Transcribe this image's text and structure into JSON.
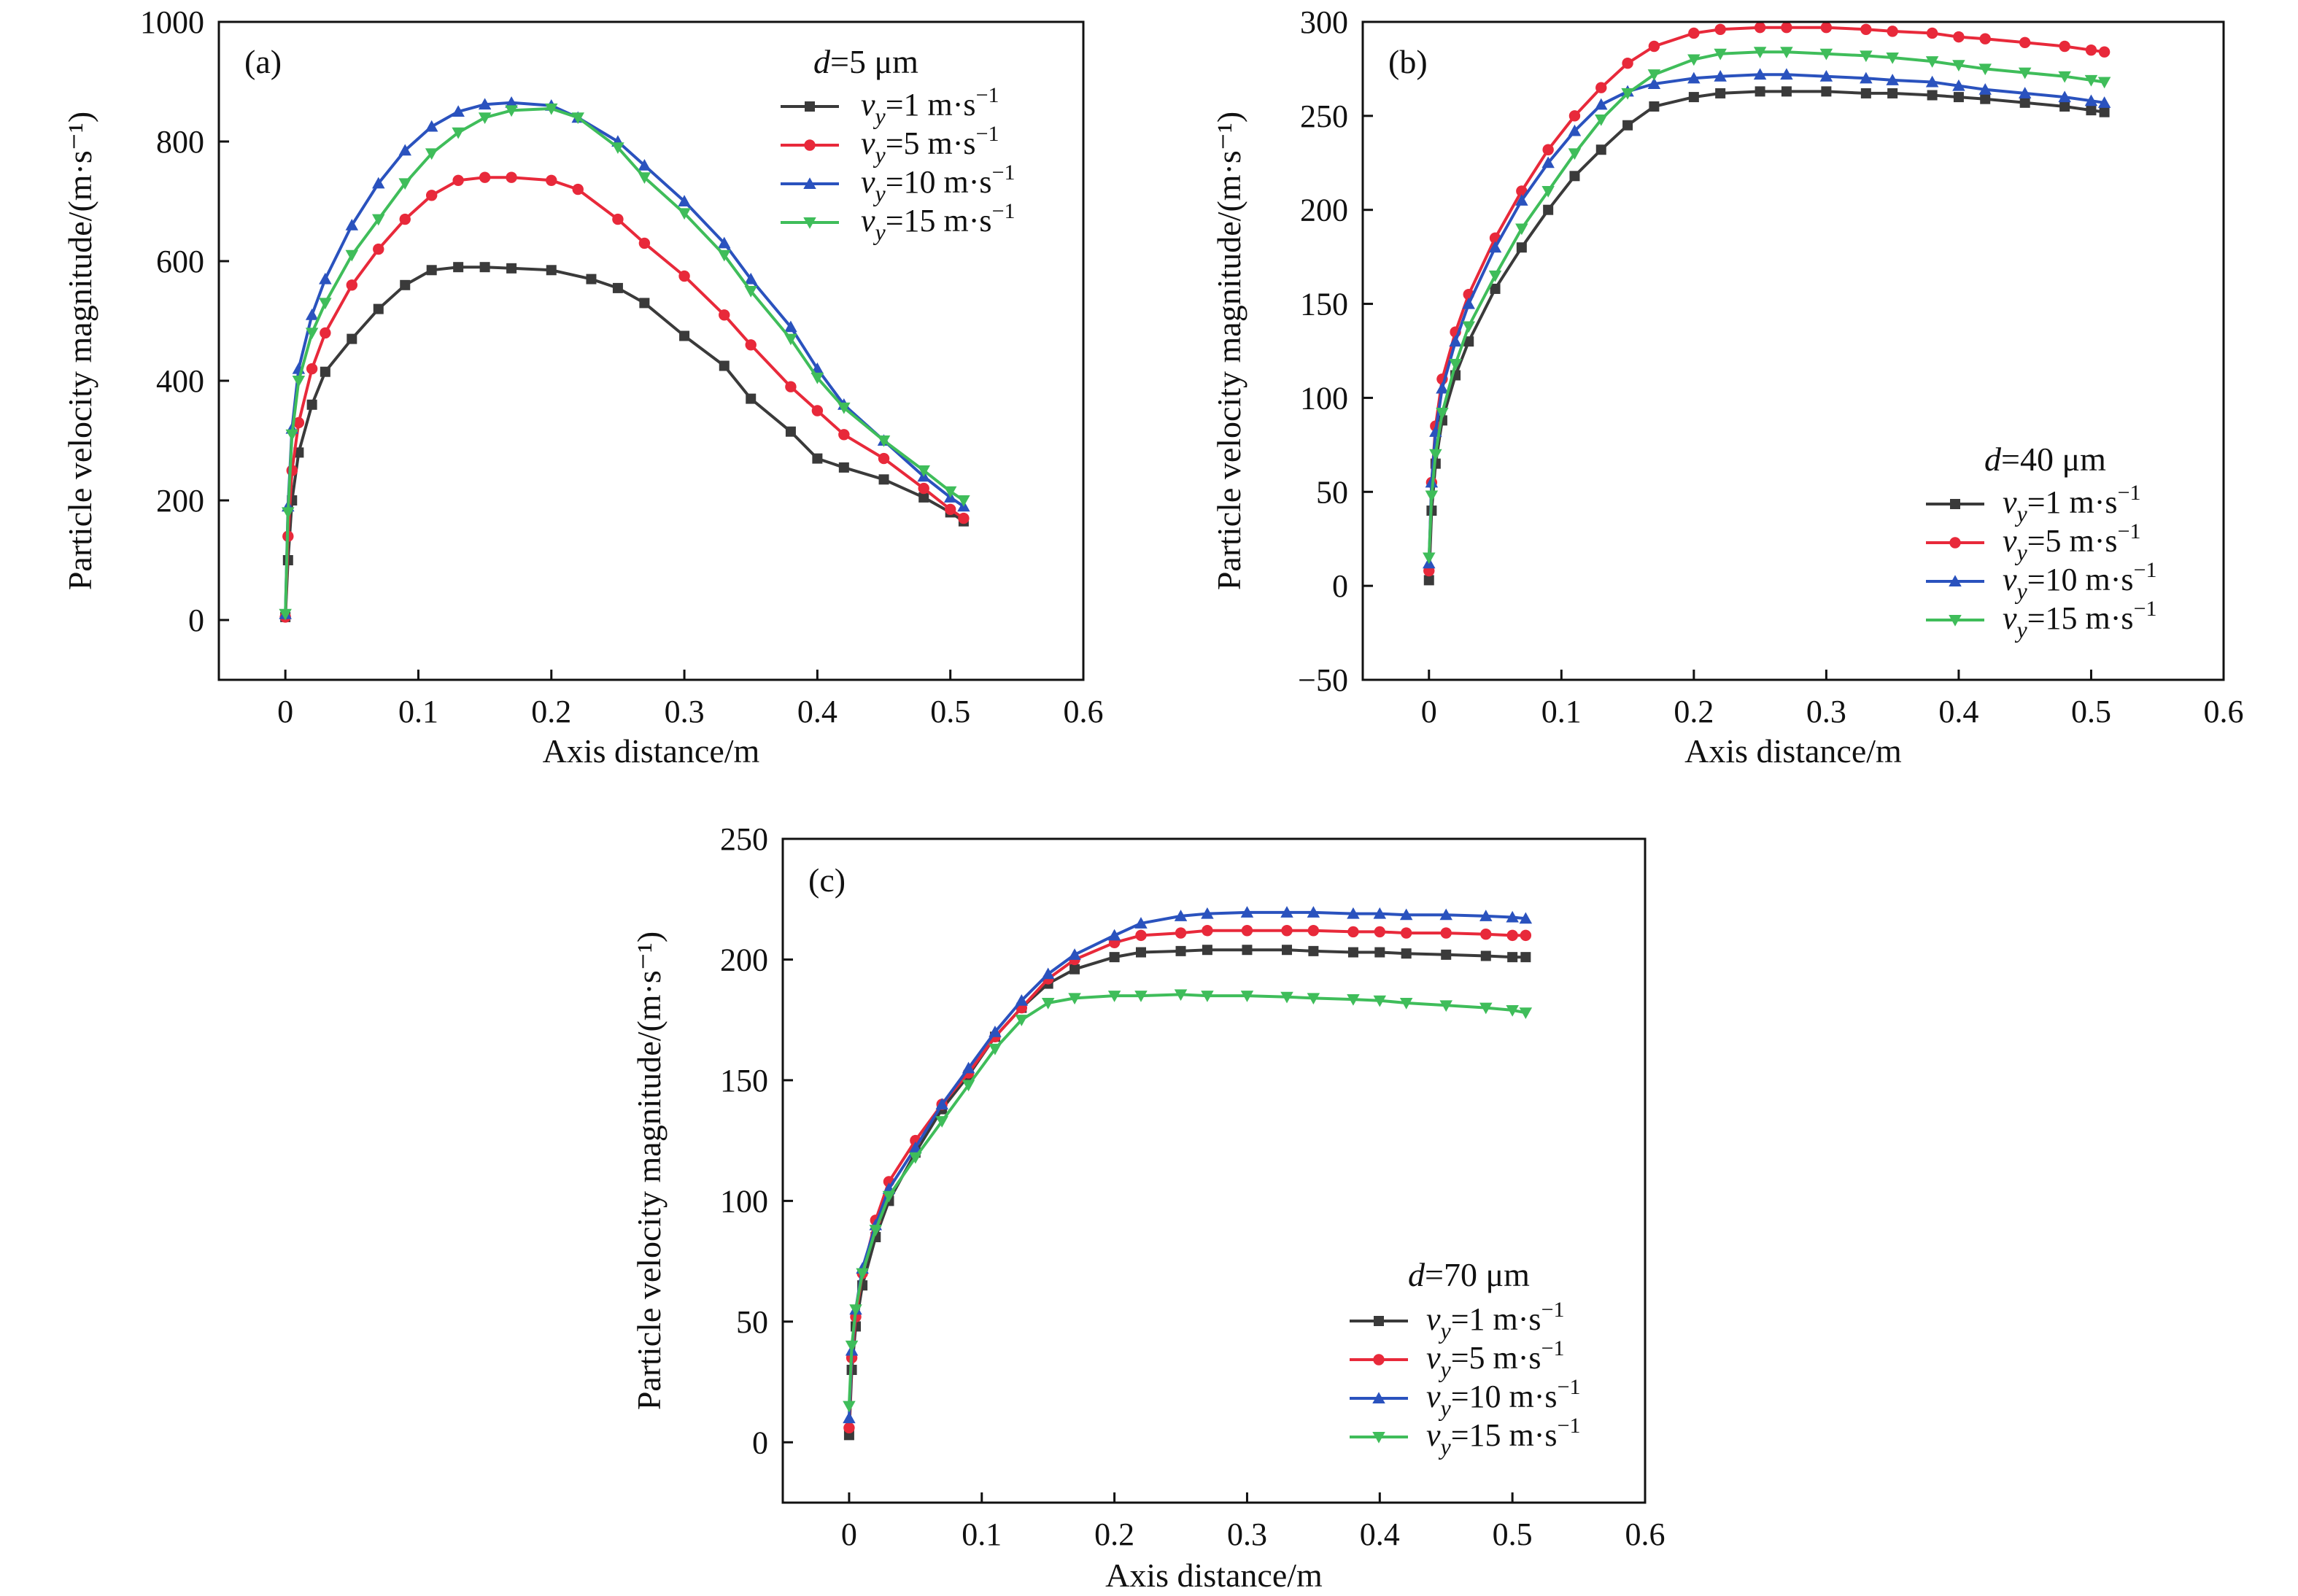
{
  "chart_data": [
    {
      "type": "line",
      "panel": "(a)",
      "xlabel": "Axis distance/m",
      "ylabel": "Particle velocity magnitude/(m·s⁻¹)",
      "xlim": [
        -0.05,
        0.6
      ],
      "ylim": [
        -100,
        1000
      ],
      "xticks": [
        "0",
        "0.1",
        "0.2",
        "0.3",
        "0.4",
        "0.5",
        "0.6"
      ],
      "yticks": [
        "0",
        "200",
        "400",
        "600",
        "800",
        "1000"
      ],
      "grid": false,
      "legend": {
        "title_var": "d",
        "title_rest": "=5 μm",
        "position": "top-right",
        "entries": [
          {
            "var": "v",
            "sub": "y",
            "rest": "=1 m·s",
            "sup": "−1"
          },
          {
            "var": "v",
            "sub": "y",
            "rest": "=5 m·s",
            "sup": "−1"
          },
          {
            "var": "v",
            "sub": "y",
            "rest": "=10 m·s",
            "sup": "−1"
          },
          {
            "var": "v",
            "sub": "y",
            "rest": "=15 m·s",
            "sup": "−1"
          }
        ]
      },
      "series": [
        {
          "name": "vy=1 m·s−1",
          "color": "#3a3a3a",
          "marker": "square",
          "x": [
            0,
            0.002,
            0.005,
            0.01,
            0.02,
            0.03,
            0.05,
            0.07,
            0.09,
            0.11,
            0.13,
            0.15,
            0.17,
            0.2,
            0.23,
            0.25,
            0.27,
            0.3,
            0.33,
            0.35,
            0.38,
            0.4,
            0.42,
            0.45,
            0.48,
            0.5,
            0.51
          ],
          "y": [
            5,
            100,
            200,
            280,
            360,
            415,
            470,
            520,
            560,
            585,
            590,
            590,
            588,
            585,
            570,
            555,
            530,
            475,
            425,
            370,
            315,
            270,
            255,
            235,
            205,
            180,
            165
          ]
        },
        {
          "name": "vy=5 m·s−1",
          "color": "#e8293a",
          "marker": "circle",
          "x": [
            0,
            0.002,
            0.005,
            0.01,
            0.02,
            0.03,
            0.05,
            0.07,
            0.09,
            0.11,
            0.13,
            0.15,
            0.17,
            0.2,
            0.22,
            0.25,
            0.27,
            0.3,
            0.33,
            0.35,
            0.38,
            0.4,
            0.42,
            0.45,
            0.48,
            0.5,
            0.51
          ],
          "y": [
            5,
            140,
            250,
            330,
            420,
            480,
            560,
            620,
            670,
            710,
            735,
            740,
            740,
            735,
            720,
            670,
            630,
            575,
            510,
            460,
            390,
            350,
            310,
            270,
            220,
            185,
            170
          ]
        },
        {
          "name": "vy=10 m·s−1",
          "color": "#2a52be",
          "marker": "triangle-up",
          "x": [
            0,
            0.002,
            0.005,
            0.01,
            0.02,
            0.03,
            0.05,
            0.07,
            0.09,
            0.11,
            0.13,
            0.15,
            0.17,
            0.2,
            0.22,
            0.25,
            0.27,
            0.3,
            0.33,
            0.35,
            0.38,
            0.4,
            0.42,
            0.45,
            0.48,
            0.5,
            0.51
          ],
          "y": [
            10,
            190,
            320,
            420,
            510,
            570,
            660,
            730,
            785,
            825,
            850,
            862,
            865,
            860,
            840,
            800,
            760,
            700,
            630,
            570,
            490,
            420,
            360,
            300,
            240,
            205,
            190
          ]
        },
        {
          "name": "vy=15 m·s−1",
          "color": "#3fbd5a",
          "marker": "triangle-down",
          "x": [
            0,
            0.002,
            0.005,
            0.01,
            0.02,
            0.03,
            0.05,
            0.07,
            0.09,
            0.11,
            0.13,
            0.15,
            0.17,
            0.2,
            0.22,
            0.25,
            0.27,
            0.3,
            0.33,
            0.35,
            0.38,
            0.4,
            0.42,
            0.45,
            0.48,
            0.5,
            0.51
          ],
          "y": [
            10,
            180,
            310,
            400,
            480,
            530,
            610,
            670,
            730,
            780,
            815,
            840,
            852,
            855,
            840,
            790,
            740,
            680,
            610,
            550,
            470,
            405,
            355,
            300,
            250,
            215,
            200
          ]
        }
      ]
    },
    {
      "type": "line",
      "panel": "(b)",
      "xlabel": "Axis distance/m",
      "ylabel": "Particle velocity magnitude/(m·s⁻¹)",
      "xlim": [
        -0.05,
        0.6
      ],
      "ylim": [
        -50,
        300
      ],
      "xticks": [
        "0",
        "0.1",
        "0.2",
        "0.3",
        "0.4",
        "0.5",
        "0.6"
      ],
      "yticks": [
        "−50",
        "0",
        "50",
        "100",
        "150",
        "200",
        "250",
        "300"
      ],
      "grid": false,
      "legend": {
        "title_var": "d",
        "title_rest": "=40 μm",
        "position": "bottom-right",
        "entries": [
          {
            "var": "v",
            "sub": "y",
            "rest": "=1 m·s",
            "sup": "−1"
          },
          {
            "var": "v",
            "sub": "y",
            "rest": "=5 m·s",
            "sup": "−1"
          },
          {
            "var": "v",
            "sub": "y",
            "rest": "=10 m·s",
            "sup": "−1"
          },
          {
            "var": "v",
            "sub": "y",
            "rest": "=15 m·s",
            "sup": "−1"
          }
        ]
      },
      "series": [
        {
          "name": "vy=1 m·s−1",
          "color": "#3a3a3a",
          "marker": "square",
          "x": [
            0,
            0.002,
            0.005,
            0.01,
            0.02,
            0.03,
            0.05,
            0.07,
            0.09,
            0.11,
            0.13,
            0.15,
            0.17,
            0.2,
            0.22,
            0.25,
            0.27,
            0.3,
            0.33,
            0.35,
            0.38,
            0.4,
            0.42,
            0.45,
            0.48,
            0.5,
            0.51
          ],
          "y": [
            3,
            40,
            65,
            88,
            112,
            130,
            158,
            180,
            200,
            218,
            232,
            245,
            255,
            260,
            262,
            263,
            263,
            263,
            262,
            262,
            261,
            260,
            259,
            257,
            255,
            253,
            252
          ]
        },
        {
          "name": "vy=5 m·s−1",
          "color": "#e8293a",
          "marker": "circle",
          "x": [
            0,
            0.002,
            0.005,
            0.01,
            0.02,
            0.03,
            0.05,
            0.07,
            0.09,
            0.11,
            0.13,
            0.15,
            0.17,
            0.2,
            0.22,
            0.25,
            0.27,
            0.3,
            0.33,
            0.35,
            0.38,
            0.4,
            0.42,
            0.45,
            0.48,
            0.5,
            0.51
          ],
          "y": [
            8,
            55,
            85,
            110,
            135,
            155,
            185,
            210,
            232,
            250,
            265,
            278,
            287,
            294,
            296,
            297,
            297,
            297,
            296,
            295,
            294,
            292,
            291,
            289,
            287,
            285,
            284
          ]
        },
        {
          "name": "vy=10 m·s−1",
          "color": "#2a52be",
          "marker": "triangle-up",
          "x": [
            0,
            0.002,
            0.005,
            0.01,
            0.02,
            0.03,
            0.05,
            0.07,
            0.09,
            0.11,
            0.13,
            0.15,
            0.17,
            0.2,
            0.22,
            0.25,
            0.27,
            0.3,
            0.33,
            0.35,
            0.38,
            0.4,
            0.42,
            0.45,
            0.48,
            0.5,
            0.51
          ],
          "y": [
            12,
            55,
            82,
            105,
            130,
            150,
            180,
            205,
            225,
            242,
            256,
            263,
            267,
            270,
            271,
            272,
            272,
            271,
            270,
            269,
            268,
            266,
            264,
            262,
            260,
            258,
            257
          ]
        },
        {
          "name": "vy=15 m·s−1",
          "color": "#3fbd5a",
          "marker": "triangle-down",
          "x": [
            0,
            0.002,
            0.005,
            0.01,
            0.02,
            0.03,
            0.05,
            0.07,
            0.09,
            0.11,
            0.13,
            0.15,
            0.17,
            0.2,
            0.22,
            0.25,
            0.27,
            0.3,
            0.33,
            0.35,
            0.38,
            0.4,
            0.42,
            0.45,
            0.48,
            0.5,
            0.51
          ],
          "y": [
            15,
            48,
            70,
            92,
            118,
            138,
            165,
            190,
            210,
            230,
            248,
            262,
            272,
            280,
            283,
            284,
            284,
            283,
            282,
            281,
            279,
            277,
            275,
            273,
            271,
            269,
            268
          ]
        }
      ]
    },
    {
      "type": "line",
      "panel": "(c)",
      "xlabel": "Axis distance/m",
      "ylabel": "Particle velocity magnitude/(m·s⁻¹)",
      "xlim": [
        -0.05,
        0.6
      ],
      "ylim": [
        -25,
        250
      ],
      "xticks": [
        "0",
        "0.1",
        "0.2",
        "0.3",
        "0.4",
        "0.5",
        "0.6"
      ],
      "yticks": [
        "0",
        "50",
        "100",
        "150",
        "200",
        "250"
      ],
      "grid": false,
      "legend": {
        "title_var": "d",
        "title_rest": "=70 μm",
        "position": "bottom-right",
        "entries": [
          {
            "var": "v",
            "sub": "y",
            "rest": "=1 m·s",
            "sup": "−1"
          },
          {
            "var": "v",
            "sub": "y",
            "rest": "=5 m·s",
            "sup": "−1"
          },
          {
            "var": "v",
            "sub": "y",
            "rest": "=10 m·s",
            "sup": "−1"
          },
          {
            "var": "v",
            "sub": "y",
            "rest": "=15 m·s",
            "sup": "−1"
          }
        ]
      },
      "series": [
        {
          "name": "vy=1 m·s−1",
          "color": "#3a3a3a",
          "marker": "square",
          "x": [
            0,
            0.002,
            0.005,
            0.01,
            0.02,
            0.03,
            0.05,
            0.07,
            0.09,
            0.11,
            0.13,
            0.15,
            0.17,
            0.2,
            0.22,
            0.25,
            0.27,
            0.3,
            0.33,
            0.35,
            0.38,
            0.4,
            0.42,
            0.45,
            0.48,
            0.5,
            0.51
          ],
          "y": [
            3,
            30,
            48,
            65,
            85,
            100,
            120,
            138,
            152,
            168,
            180,
            190,
            196,
            201,
            203,
            203.5,
            204,
            204,
            204,
            203.5,
            203,
            203,
            202.5,
            202,
            201.5,
            201,
            201
          ]
        },
        {
          "name": "vy=5 m·s−1",
          "color": "#e8293a",
          "marker": "circle",
          "x": [
            0,
            0.002,
            0.005,
            0.01,
            0.02,
            0.03,
            0.05,
            0.07,
            0.09,
            0.11,
            0.13,
            0.15,
            0.17,
            0.2,
            0.22,
            0.25,
            0.27,
            0.3,
            0.33,
            0.35,
            0.38,
            0.4,
            0.42,
            0.45,
            0.48,
            0.5,
            0.51
          ],
          "y": [
            6,
            35,
            52,
            70,
            92,
            108,
            125,
            140,
            153,
            168,
            180,
            192,
            200,
            207,
            210,
            211,
            212,
            212,
            212,
            212,
            211.5,
            211.5,
            211,
            211,
            210.5,
            210,
            210
          ]
        },
        {
          "name": "vy=10 m·s−1",
          "color": "#2a52be",
          "marker": "triangle-up",
          "x": [
            0,
            0.002,
            0.005,
            0.01,
            0.02,
            0.03,
            0.05,
            0.07,
            0.09,
            0.11,
            0.13,
            0.15,
            0.17,
            0.2,
            0.22,
            0.25,
            0.27,
            0.3,
            0.33,
            0.35,
            0.38,
            0.4,
            0.42,
            0.45,
            0.48,
            0.5,
            0.51
          ],
          "y": [
            10,
            38,
            55,
            72,
            90,
            105,
            122,
            140,
            155,
            170,
            183,
            194,
            202,
            210,
            215,
            218,
            219,
            219.5,
            219.5,
            219.5,
            219,
            219,
            218.5,
            218.5,
            218,
            217.5,
            217
          ]
        },
        {
          "name": "vy=15 m·s−1",
          "color": "#3fbd5a",
          "marker": "triangle-down",
          "x": [
            0,
            0.002,
            0.005,
            0.01,
            0.02,
            0.03,
            0.05,
            0.07,
            0.09,
            0.11,
            0.13,
            0.15,
            0.17,
            0.2,
            0.22,
            0.25,
            0.27,
            0.3,
            0.33,
            0.35,
            0.38,
            0.4,
            0.42,
            0.45,
            0.48,
            0.5,
            0.51
          ],
          "y": [
            15,
            40,
            55,
            70,
            88,
            102,
            118,
            133,
            148,
            163,
            175,
            182,
            184,
            185,
            185,
            185.5,
            185,
            185,
            184.5,
            184,
            183.5,
            183,
            182,
            181,
            180,
            179,
            178
          ]
        }
      ]
    }
  ]
}
